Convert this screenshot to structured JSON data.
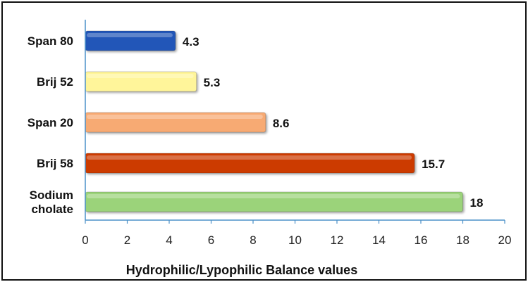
{
  "chart_data": {
    "type": "bar",
    "orientation": "horizontal",
    "categories": [
      "Span 80",
      "Brij 52",
      "Span 20",
      "Brij 58",
      "Sodium cholate"
    ],
    "category_lines": [
      [
        "Span 80"
      ],
      [
        "Brij 52"
      ],
      [
        "Span 20"
      ],
      [
        "Brij 58"
      ],
      [
        "Sodium",
        "cholate"
      ]
    ],
    "values": [
      4.3,
      5.3,
      8.6,
      15.7,
      18
    ],
    "colors": [
      "#2357b8",
      "#fff59a",
      "#f7aa73",
      "#cc3b06",
      "#9bd37a"
    ],
    "title": "",
    "xlabel": "Hydrophilic/Lypophilic Balance values",
    "ylabel": "",
    "xlim": [
      0,
      20
    ],
    "xticks": [
      0,
      2,
      4,
      6,
      8,
      10,
      12,
      14,
      16,
      18,
      20
    ],
    "grid": false,
    "legend": "none"
  }
}
